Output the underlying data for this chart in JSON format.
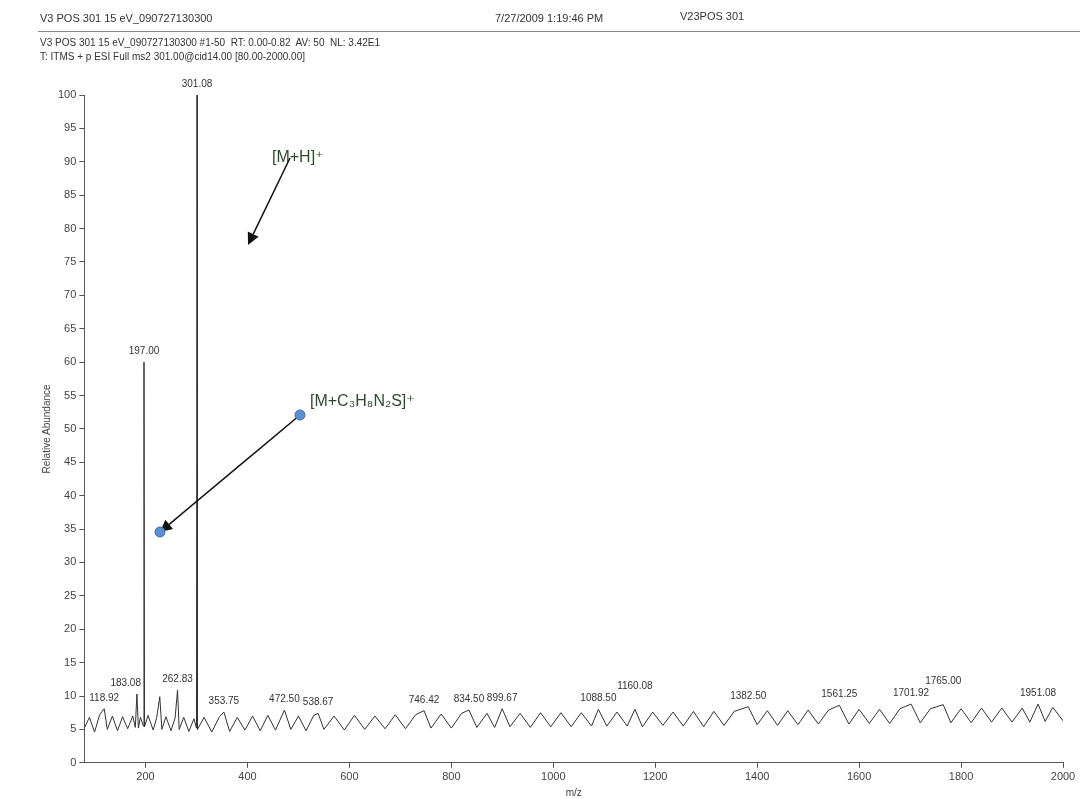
{
  "chart_data": {
    "type": "line",
    "title": "V3 POS 301 15 eV_090727130300",
    "annotations": [
      "7/27/2009 1:19:46 PM",
      "V23POS 301",
      "V3 POS 301 15 eV_090727130300 #1-50  RT: 0.00-0.82  AV: 50  NL: 3.42E1",
      "T: ITMS + p ESI Full ms2 301.00@cid14.00 [80.00-2000.00]",
      "[M+H]⁺",
      "[M+C₃H₈N₂S]⁺",
      {
        "text": "301.08",
        "x": 301.08,
        "y": 100
      },
      {
        "text": "197.00",
        "x": 197.0,
        "y": 60
      },
      {
        "text": "118.92",
        "x": 118.92,
        "y": 8.1
      },
      {
        "text": "183.08",
        "x": 183.08,
        "y": 10.3
      },
      {
        "text": "262.83",
        "x": 262.83,
        "y": 10.9
      },
      {
        "text": "353.75",
        "x": 353.75,
        "y": 7.6
      },
      {
        "text": "472.50",
        "x": 472.5,
        "y": 7.9
      },
      {
        "text": "538.67",
        "x": 538.67,
        "y": 7.4
      },
      {
        "text": "746.42",
        "x": 746.42,
        "y": 7.8
      },
      {
        "text": "834.50",
        "x": 834.5,
        "y": 7.9
      },
      {
        "text": "899.67",
        "x": 899.67,
        "y": 8.1
      },
      {
        "text": "1088.50",
        "x": 1088.5,
        "y": 8.0
      },
      {
        "text": "1160.08",
        "x": 1160.08,
        "y": 8.0
      },
      {
        "text": "1382.50",
        "x": 1382.5,
        "y": 8.4
      },
      {
        "text": "1561.25",
        "x": 1561.25,
        "y": 8.6
      },
      {
        "text": "1701.92",
        "x": 1701.92,
        "y": 8.8
      },
      {
        "text": "1765.00",
        "x": 1765.0,
        "y": 8.7
      },
      {
        "text": "1951.08",
        "x": 1951.08,
        "y": 8.8
      }
    ],
    "xlabel": "m/z",
    "ylabel": "Relative Abundance",
    "x": [
      80,
      90,
      100,
      110,
      118.92,
      125,
      135,
      145,
      155,
      165,
      175,
      180,
      183.08,
      186,
      190,
      196,
      197.0,
      198,
      205,
      215,
      222,
      228,
      232,
      240,
      250,
      258,
      262.83,
      266,
      275,
      285,
      295,
      300,
      301.08,
      302,
      315,
      330,
      345,
      353.75,
      365,
      380,
      395,
      410,
      425,
      440,
      455,
      472.5,
      485,
      500,
      515,
      530,
      538.67,
      550,
      570,
      590,
      610,
      630,
      650,
      670,
      690,
      710,
      730,
      746.42,
      760,
      780,
      800,
      820,
      834.5,
      850,
      870,
      885,
      899.67,
      915,
      935,
      955,
      975,
      995,
      1015,
      1035,
      1055,
      1075,
      1088.5,
      1105,
      1125,
      1145,
      1160.08,
      1175,
      1195,
      1215,
      1235,
      1255,
      1275,
      1295,
      1315,
      1335,
      1355,
      1382.5,
      1400,
      1420,
      1440,
      1460,
      1480,
      1500,
      1520,
      1540,
      1561.25,
      1580,
      1600,
      1620,
      1640,
      1660,
      1680,
      1701.92,
      1720,
      1740,
      1765.0,
      1780,
      1800,
      1820,
      1840,
      1860,
      1880,
      1900,
      1920,
      1935,
      1951.08,
      1965,
      1980,
      2000
    ],
    "series": [
      {
        "color": "#333333",
        "values": [
          5.2,
          6.8,
          4.6,
          7.2,
          8.1,
          5.0,
          7.0,
          4.8,
          6.9,
          5.1,
          7.0,
          5.3,
          10.3,
          5.2,
          6.8,
          5.5,
          60,
          5.4,
          7.1,
          4.9,
          6.8,
          9.9,
          5.0,
          6.9,
          4.8,
          6.7,
          10.9,
          5.0,
          6.8,
          4.7,
          6.6,
          5.2,
          100,
          5.0,
          6.8,
          4.6,
          6.9,
          7.6,
          4.7,
          6.8,
          4.9,
          7.0,
          4.8,
          7.1,
          4.9,
          7.9,
          5.0,
          7.0,
          4.8,
          7.1,
          7.4,
          5.0,
          7.0,
          4.9,
          7.1,
          5.0,
          7.0,
          5.1,
          7.2,
          5.1,
          7.2,
          7.8,
          5.2,
          7.3,
          5.2,
          7.4,
          7.9,
          5.3,
          7.4,
          5.3,
          8.1,
          5.4,
          7.4,
          5.3,
          7.5,
          5.4,
          7.5,
          5.4,
          7.5,
          5.5,
          8.0,
          5.5,
          7.6,
          5.5,
          8.0,
          5.4,
          7.6,
          5.6,
          7.6,
          5.5,
          7.7,
          5.4,
          7.7,
          5.6,
          7.7,
          8.4,
          5.7,
          7.8,
          5.6,
          7.8,
          5.7,
          7.9,
          5.8,
          7.9,
          8.6,
          5.8,
          8.0,
          5.9,
          8.0,
          5.9,
          8.1,
          8.8,
          6.0,
          8.1,
          8.7,
          6.0,
          8.1,
          6.0,
          8.2,
          6.1,
          8.2,
          6.1,
          8.2,
          6.1,
          8.8,
          6.2,
          8.3,
          6.3
        ]
      }
    ],
    "xlim": [
      80,
      2000
    ],
    "xticks": [
      200,
      400,
      600,
      800,
      1000,
      1200,
      1400,
      1600,
      1800,
      2000
    ],
    "ylim": [
      0,
      100
    ],
    "yticks": [
      0,
      5,
      10,
      15,
      20,
      25,
      30,
      35,
      40,
      45,
      50,
      55,
      60,
      65,
      70,
      75,
      80,
      85,
      90,
      95,
      100
    ]
  }
}
